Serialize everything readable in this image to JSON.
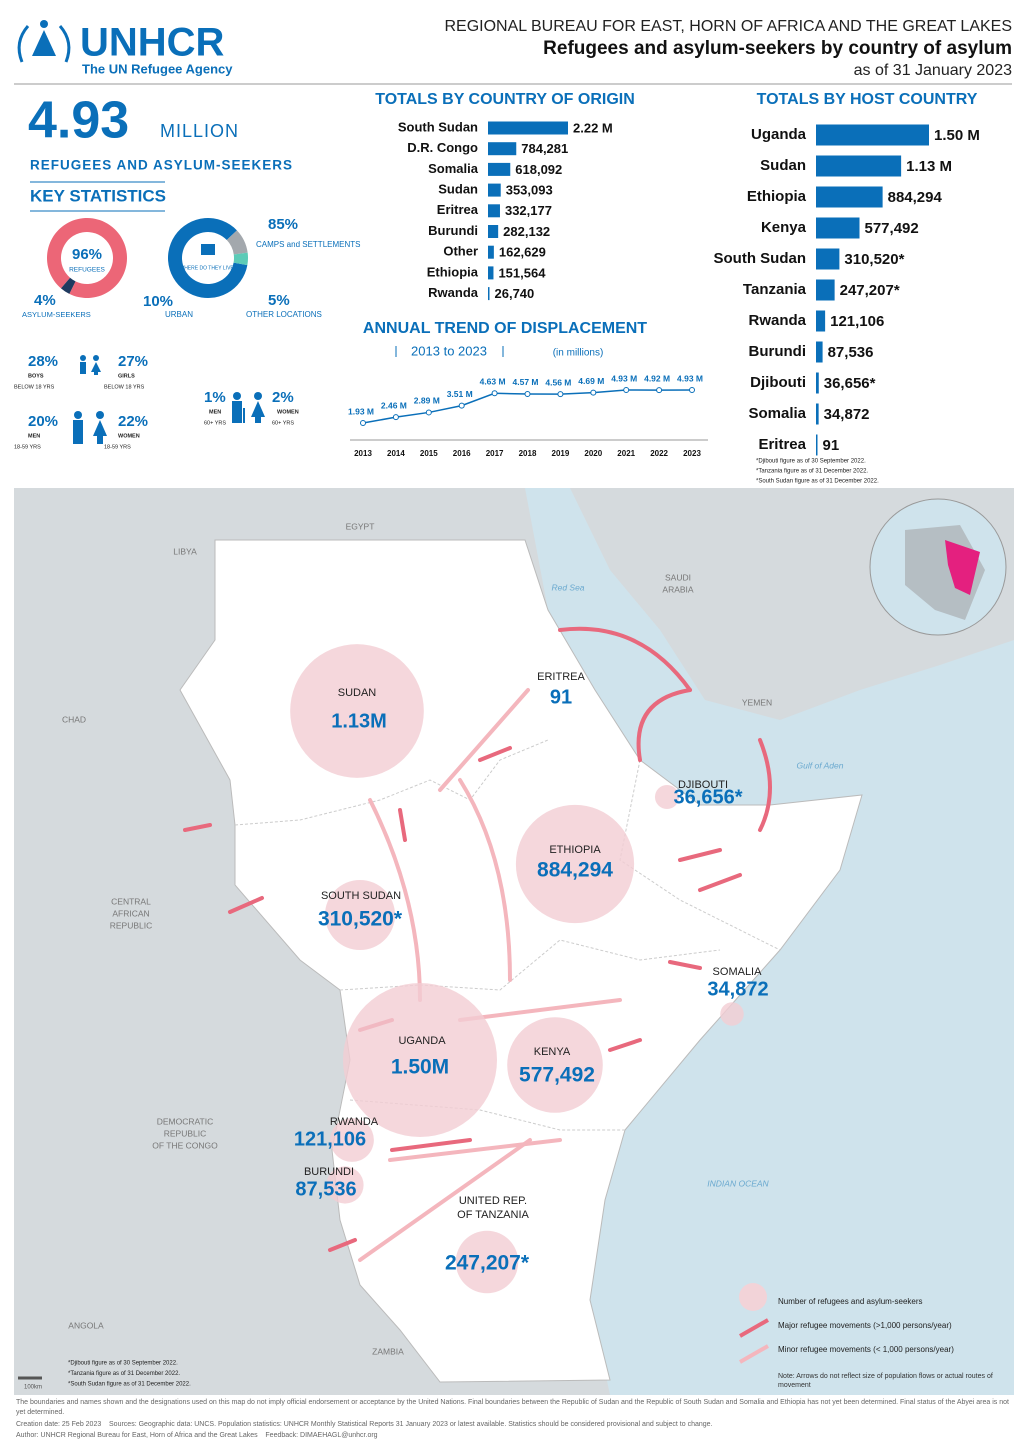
{
  "header": {
    "logo": "UNHCR",
    "tagline": "The UN Refugee Agency",
    "bureau": "REGIONAL BUREAU FOR EAST, HORN OF AFRICA AND THE GREAT LAKES",
    "title": "Refugees and asylum-seekers by country of asylum",
    "date": "as of 31 January 2023"
  },
  "summary": {
    "total": 4.93,
    "unit": "MILLION",
    "label": "REFUGEES AND ASYLUM-SEEKERS"
  },
  "key_statistics": {
    "title": "KEY STATISTICS",
    "status": {
      "type": "pie",
      "segments": [
        {
          "name": "REFUGEES",
          "value": 96,
          "label": "96%",
          "color": "#ec6677"
        },
        {
          "name": "ASYLUM-SEEKERS",
          "value": 4,
          "label": "4%",
          "color": "#1f3a5f"
        }
      ]
    },
    "location": {
      "type": "pie",
      "center": "WHERE DO THEY LIVE?",
      "segments": [
        {
          "name": "CAMPS and SETTLEMENTS",
          "value": 85,
          "label": "85%",
          "color": "#0a6fb9"
        },
        {
          "name": "URBAN",
          "value": 10,
          "label": "10%",
          "color": "#a3a8ad"
        },
        {
          "name": "OTHER LOCATIONS",
          "value": 5,
          "label": "5%",
          "color": "#5ccbb7"
        }
      ]
    },
    "demographics": [
      {
        "group": "BOYS",
        "age": "BELOW 18 YRS",
        "value": 28,
        "label": "28%"
      },
      {
        "group": "GIRLS",
        "age": "BELOW 18 YRS",
        "value": 27,
        "label": "27%"
      },
      {
        "group": "MEN",
        "age": "18-59 YRS",
        "value": 20,
        "label": "20%"
      },
      {
        "group": "WOMEN",
        "age": "18-59 YRS",
        "value": 22,
        "label": "22%"
      },
      {
        "group": "MEN",
        "age": "60+ YRS",
        "value": 1,
        "label": "1%"
      },
      {
        "group": "WOMEN",
        "age": "60+ YRS",
        "value": 2,
        "label": "2%"
      }
    ]
  },
  "chart_data": [
    {
      "type": "bar",
      "orientation": "horizontal",
      "title": "TOTALS BY COUNTRY OF ORIGIN",
      "categories": [
        "South Sudan",
        "D.R. Congo",
        "Somalia",
        "Sudan",
        "Eritrea",
        "Burundi",
        "Other",
        "Ethiopia",
        "Rwanda"
      ],
      "values": [
        2220000,
        784281,
        618092,
        353093,
        332177,
        282132,
        162629,
        151564,
        26740
      ],
      "value_labels": [
        "2.22 M",
        "784,281",
        "618,092",
        "353,093",
        "332,177",
        "282,132",
        "162,629",
        "151,564",
        "26,740"
      ],
      "color": "#0a6fb9"
    },
    {
      "type": "bar",
      "orientation": "horizontal",
      "title": "TOTALS BY HOST COUNTRY",
      "categories": [
        "Uganda",
        "Sudan",
        "Ethiopia",
        "Kenya",
        "South Sudan",
        "Tanzania",
        "Rwanda",
        "Burundi",
        "Djibouti",
        "Somalia",
        "Eritrea"
      ],
      "values": [
        1500000,
        1130000,
        884294,
        577492,
        310520,
        247207,
        121106,
        87536,
        36656,
        34872,
        91
      ],
      "value_labels": [
        "1.50 M",
        "1.13 M",
        "884,294",
        "577,492",
        "310,520*",
        "247,207*",
        "121,106",
        "87,536",
        "36,656*",
        "34,872",
        "91"
      ],
      "color": "#0a6fb9",
      "footnotes": [
        "*Djibouti figure as of 30 September 2022.",
        "*Tanzania figure as of 31 December 2022.",
        "*South Sudan figure as of 31 December 2022."
      ]
    },
    {
      "type": "line",
      "title": "ANNUAL TREND OF DISPLACEMENT",
      "subtitle": "2013 to 2023",
      "unit": "(in millions)",
      "categories": [
        "2013",
        "2014",
        "2015",
        "2016",
        "2017",
        "2018",
        "2019",
        "2020",
        "2021",
        "2022",
        "2023"
      ],
      "values": [
        1.93,
        2.46,
        2.89,
        3.51,
        4.63,
        4.57,
        4.56,
        4.69,
        4.93,
        4.92,
        4.93
      ],
      "value_labels": [
        "1.93 M",
        "2.46 M",
        "2.89 M",
        "3.51 M",
        "4.63 M",
        "4.57 M",
        "4.56 M",
        "4.69 M",
        "4.93 M",
        "4.92 M",
        "4.93 M"
      ],
      "color": "#0a6fb9"
    }
  ],
  "map": {
    "countries": [
      {
        "lines": [
          "EGYPT"
        ]
      },
      {
        "lines": [
          "LIBYA"
        ]
      },
      {
        "lines": [
          "CHAD"
        ]
      },
      {
        "lines": [
          "SAUDI",
          "ARABIA"
        ]
      },
      {
        "lines": [
          "YEMEN"
        ]
      },
      {
        "lines": [
          "CENTRAL",
          "AFRICAN",
          "REPUBLIC"
        ]
      },
      {
        "lines": [
          "DEMOCRATIC",
          "REPUBLIC",
          "OF THE CONGO"
        ]
      },
      {
        "lines": [
          "ANGOLA"
        ]
      },
      {
        "lines": [
          "ZAMBIA"
        ]
      }
    ],
    "seas": [
      "Red Sea",
      "Gulf of Aden",
      "INDIAN OCEAN"
    ],
    "bubbles": [
      {
        "name": [
          "SUDAN"
        ],
        "value": 1130000,
        "label": "1.13M"
      },
      {
        "name": [
          "ERITREA"
        ],
        "value": 91,
        "label": "91"
      },
      {
        "name": [
          "DJIBOUTI"
        ],
        "value": 36656,
        "label": "36,656*"
      },
      {
        "name": [
          "ETHIOPIA"
        ],
        "value": 884294,
        "label": "884,294"
      },
      {
        "name": [
          "SOUTH SUDAN"
        ],
        "value": 310520,
        "label": "310,520*"
      },
      {
        "name": [
          "SOMALIA"
        ],
        "value": 34872,
        "label": "34,872"
      },
      {
        "name": [
          "UGANDA"
        ],
        "value": 1500000,
        "label": "1.50M"
      },
      {
        "name": [
          "KENYA"
        ],
        "value": 577492,
        "label": "577,492"
      },
      {
        "name": [
          "RWANDA"
        ],
        "value": 121106,
        "label": "121,106"
      },
      {
        "name": [
          "BURUNDI"
        ],
        "value": 87536,
        "label": "87,536"
      },
      {
        "name": [
          "UNITED REP.",
          "OF TANZANIA"
        ],
        "value": 247207,
        "label": "247,207*"
      }
    ],
    "legend": [
      "Number of refugees and asylum-seekers",
      "Major refugee movements (>1,000 persons/year)",
      "Minor refugee movements (< 1,000 persons/year)"
    ],
    "legend_note": "Note: Arrows do not reflect size of population flows or actual routes of movement",
    "scale": "100km",
    "footnotes": [
      "*Djibouti figure as of 30 September 2022.",
      "*Tanzania figure as of 31 December 2022.",
      "*South Sudan figure as of 31 December 2022."
    ]
  },
  "footer": {
    "disclaimer": "The boundaries and names shown and the designations used on this map do not imply official endorsement or acceptance by the United Nations. Final boundaries between the Republic of Sudan and the Republic of South Sudan and Somalia and Ethiopia has not yet been determined. Final status of the Abyei area is not yet determined.",
    "creation": "Creation date: 25 Feb 2023",
    "sources": "Sources: Geographic data: UNCS. Population statistics: UNHCR Monthly Statistical Reports 31 January 2023 or latest available. Statistics should be considered provisional and subject to change.",
    "author": "Author: UNHCR Regional Bureau for East, Horn of Africa and the Great Lakes",
    "feedback": "Feedback: DIMAEHAGL@unhcr.org"
  }
}
